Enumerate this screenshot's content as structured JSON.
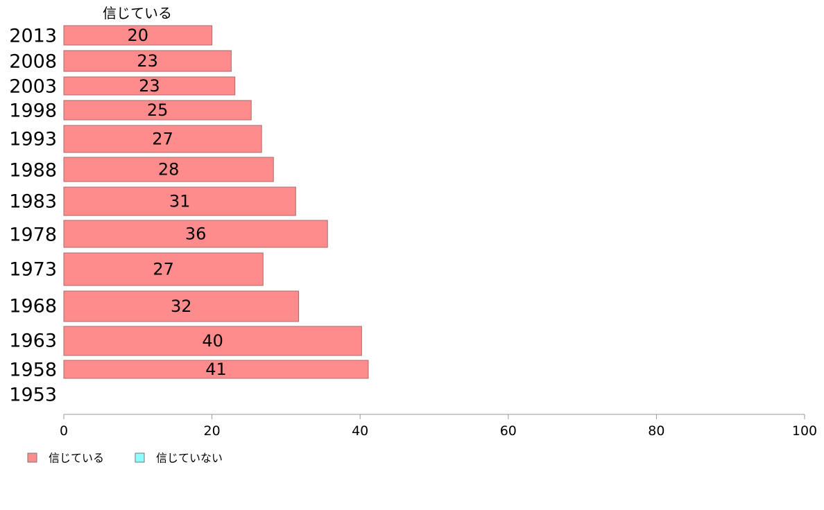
{
  "chart_data": {
    "type": "bar",
    "orientation": "horizontal",
    "series_title": "信じている",
    "categories": [
      "2013",
      "2008",
      "2003",
      "1998",
      "1993",
      "1988",
      "1983",
      "1978",
      "1973",
      "1968",
      "1963",
      "1958",
      "1953"
    ],
    "series": [
      {
        "name": "信じている",
        "color": "#ff8c8c",
        "values": [
          20,
          23,
          23,
          25,
          27,
          28,
          31,
          36,
          27,
          32,
          40,
          41,
          null
        ],
        "plotted_values": [
          20,
          22.6,
          23.1,
          25.3,
          26.7,
          28.3,
          31.3,
          35.6,
          26.9,
          31.7,
          40.2,
          41.1,
          null
        ],
        "labels": [
          "20",
          "23",
          "23",
          "25",
          "27",
          "28",
          "31",
          "36",
          "27",
          "32",
          "40",
          "41",
          ""
        ]
      }
    ],
    "legend": [
      {
        "label": "信じている",
        "color": "#ff8c8c"
      },
      {
        "label": "信じていない",
        "color": "#8cffff"
      }
    ],
    "xlim": [
      0,
      100
    ],
    "xticks": [
      "0",
      "20",
      "40",
      "60",
      "80",
      "100"
    ],
    "grid": false,
    "legend_position": "bottom-left"
  }
}
